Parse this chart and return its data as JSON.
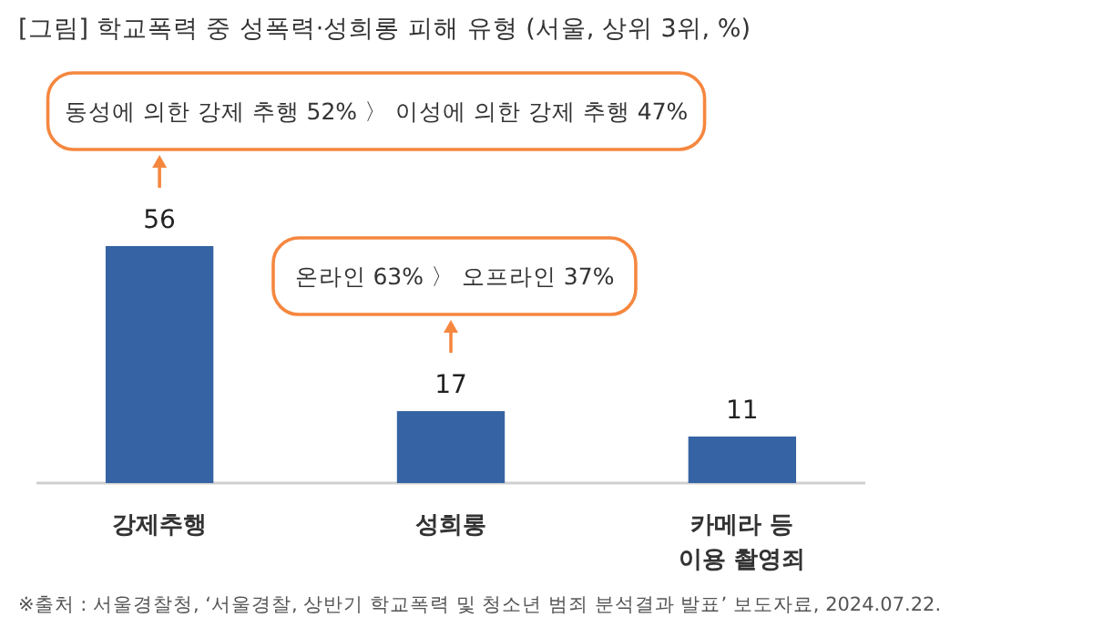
{
  "chart_data": {
    "type": "bar",
    "title": "[그림] 학교폭력 중 성폭력·성희롱 피해 유형 (서울, 상위 3위, %)",
    "categories": [
      "강제추행",
      "성희롱",
      "카메라 등 이용 촬영죄"
    ],
    "values": [
      56,
      17,
      11
    ],
    "color": "#3563a3",
    "data_labels": true,
    "annotations": [
      "동성에 의한 강제 추행 52% 〉 이성에 의한 강제 추행 47%",
      "온라인 63% 〉 오프라인 37%",
      "※출처 : 서울경찰청, ‘서울경찰, 상반기 학교폭력 및 청소년 범죄 분석결과 발표’ 보도자료, 2024.07.22."
    ]
  }
}
